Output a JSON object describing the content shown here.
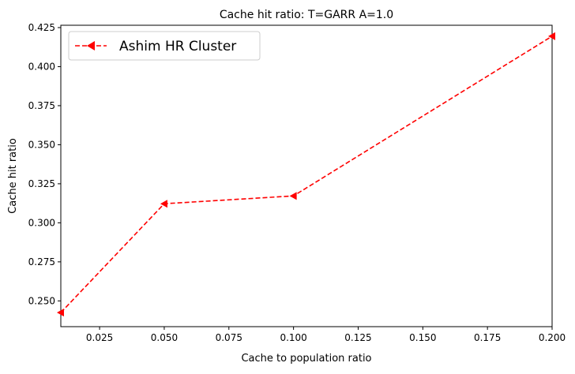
{
  "chart_data": {
    "type": "line",
    "title": "Cache hit ratio: T=GARR A=1.0",
    "xlabel": "Cache to population ratio",
    "ylabel": "Cache hit ratio",
    "xlim": [
      0.01,
      0.2
    ],
    "ylim": [
      0.2335,
      0.4265
    ],
    "xticks": [
      0.025,
      0.05,
      0.075,
      0.1,
      0.125,
      0.15,
      0.175,
      0.2
    ],
    "xtick_labels": [
      "0.025",
      "0.050",
      "0.075",
      "0.100",
      "0.125",
      "0.150",
      "0.175",
      "0.200"
    ],
    "yticks": [
      0.25,
      0.275,
      0.3,
      0.325,
      0.35,
      0.375,
      0.4,
      0.425
    ],
    "ytick_labels": [
      "0.250",
      "0.275",
      "0.300",
      "0.325",
      "0.350",
      "0.375",
      "0.400",
      "0.425"
    ],
    "grid": false,
    "legend_position": "top-left",
    "series": [
      {
        "name": "Ashim HR Cluster",
        "color": "#ff0000",
        "line_style": "dashed",
        "marker": "triangle-left",
        "x": [
          0.01,
          0.05,
          0.1,
          0.2
        ],
        "y": [
          0.2425,
          0.3122,
          0.3172,
          0.4195
        ]
      }
    ]
  }
}
